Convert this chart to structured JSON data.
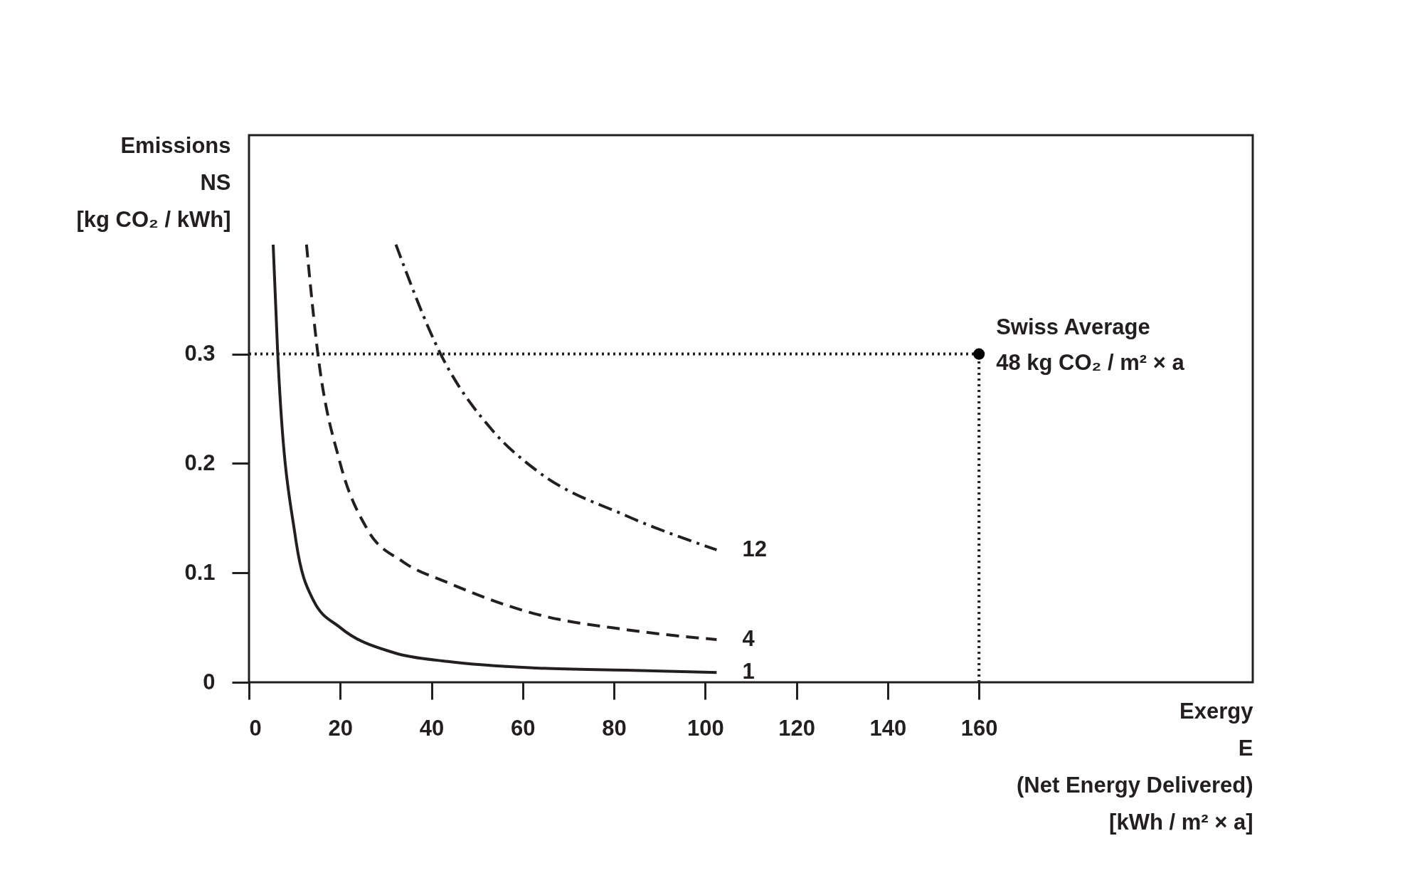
{
  "chart_data": {
    "type": "line",
    "xlabel": "Exergy\nE\n(Net Energy Delivered)\n[kWh / m² × a]",
    "ylabel": "Emissions\nNS\n[kg CO₂ / kWh]",
    "xlim": [
      0,
      220
    ],
    "ylim": [
      0,
      0.5
    ],
    "xticks": [
      0,
      20,
      40,
      60,
      80,
      100,
      120,
      140,
      160
    ],
    "yticks": [
      0,
      0.1,
      0.2,
      0.3
    ],
    "grid": false,
    "series": [
      {
        "name": "1",
        "color": "#231f20",
        "line_style": "solid",
        "x": [
          5.3,
          6.3,
          10.2,
          14.1,
          20,
          31.8,
          43.6,
          63,
          82.8,
          102.5
        ],
        "values": [
          0.4,
          0.3,
          0.132,
          0.075,
          0.05,
          0.027,
          0.019,
          0.013,
          0.011,
          0.009
        ]
      },
      {
        "name": "4",
        "color": "#231f20",
        "line_style": "dashed",
        "x": [
          12.6,
          15.1,
          20,
          25.9,
          33.8,
          43.6,
          63.2,
          82.8,
          102.5
        ],
        "values": [
          0.4,
          0.3,
          0.2,
          0.14,
          0.11,
          0.091,
          0.062,
          0.048,
          0.039
        ]
      },
      {
        "name": "12",
        "color": "#231f20",
        "line_style": "dashdot",
        "x": [
          32.2,
          42,
          53.4,
          63.2,
          82.8,
          102.5
        ],
        "values": [
          0.4,
          0.3,
          0.23,
          0.193,
          0.152,
          0.121
        ]
      },
      {
        "color": "#231f20",
        "line_style": "dotted",
        "x": [
          0,
          160
        ],
        "values": [
          0.3,
          0.3
        ]
      },
      {
        "color": "#231f20",
        "line_style": "dotted",
        "x": [
          160,
          160
        ],
        "values": [
          0,
          0.3
        ]
      },
      {
        "type": "scatter",
        "marker": "circle",
        "color": "#000000",
        "x": [
          160
        ],
        "values": [
          0.3
        ]
      }
    ],
    "annotations": [
      {
        "text": "Swiss Average",
        "x": 160,
        "y": 0.3
      },
      {
        "text": "48 kg CO₂ / m² × a",
        "x": 160,
        "y": 0.3
      }
    ]
  }
}
